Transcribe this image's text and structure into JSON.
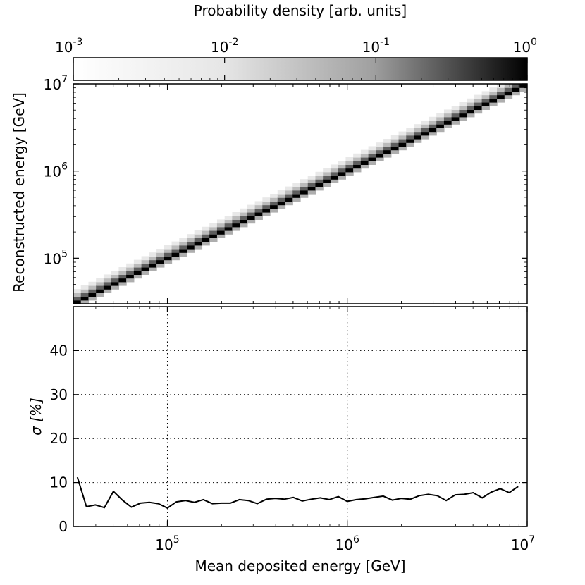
{
  "chart_data": [
    {
      "type": "heatmap",
      "title": "",
      "colorbar": {
        "label": "Probability density [arb. units]",
        "scale": "log",
        "range": [
          0.001,
          1
        ],
        "ticks": [
          {
            "base": "10",
            "exp": "-3"
          },
          {
            "base": "10",
            "exp": "-2"
          },
          {
            "base": "10",
            "exp": "-1"
          },
          {
            "base": "10",
            "exp": "0"
          }
        ],
        "colormap": "gray_r"
      },
      "xscale": "log",
      "xlim": [
        30000,
        10000000
      ],
      "yscale": "log",
      "ylim": [
        30000,
        10000000
      ],
      "ylabel": "Reconstructed energy [GeV]",
      "yticks": [
        {
          "base": "10",
          "exp": "5",
          "value": 100000
        },
        {
          "base": "10",
          "exp": "6",
          "value": 1000000
        },
        {
          "base": "10",
          "exp": "7",
          "value": 10000000
        }
      ],
      "description_values": {
        "diagonal_peak_density": 1.0,
        "relation": "reconstructed energy ≈ deposited energy"
      }
    },
    {
      "type": "line",
      "xlabel": "Mean deposited energy [GeV]",
      "ylabel": "σ [%]",
      "xscale": "log",
      "xlim": [
        30000,
        10000000
      ],
      "ylim": [
        0,
        50
      ],
      "grid": true,
      "xticks": [
        {
          "base": "10",
          "exp": "5",
          "value": 100000
        },
        {
          "base": "10",
          "exp": "6",
          "value": 1000000
        },
        {
          "base": "10",
          "exp": "7",
          "value": 10000000
        }
      ],
      "yticks": [
        "0",
        "10",
        "20",
        "30",
        "40"
      ],
      "series": [
        {
          "name": "sigma",
          "x": [
            31623,
            35481,
            39811,
            44668,
            50119,
            56234,
            63096,
            70795,
            79433,
            89125,
            100000,
            112202,
            125893,
            141254,
            158489,
            177828,
            199526,
            223872,
            251189,
            281838,
            316228,
            354813,
            398107,
            446684,
            501187,
            562341,
            630957,
            707946,
            794328,
            891251,
            1000000,
            1122018,
            1258925,
            1412538,
            1584893,
            1778279,
            1995262,
            2238721,
            2511886,
            2818383,
            3162278,
            3548134,
            3981072,
            4466836,
            5011872,
            5623413,
            6309573,
            7079458,
            7943282,
            8912509
          ],
          "values": [
            11.2,
            4.5,
            4.9,
            4.3,
            8.0,
            6.0,
            4.4,
            5.3,
            5.5,
            5.2,
            4.2,
            5.6,
            5.9,
            5.5,
            6.1,
            5.2,
            5.3,
            5.3,
            6.1,
            5.9,
            5.2,
            6.2,
            6.4,
            6.2,
            6.6,
            5.8,
            6.2,
            6.5,
            6.1,
            6.8,
            5.7,
            6.1,
            6.3,
            6.6,
            6.9,
            6.0,
            6.4,
            6.2,
            7.0,
            7.3,
            7.0,
            5.9,
            7.2,
            7.3,
            7.7,
            6.5,
            7.8,
            8.6,
            7.7,
            9.1
          ]
        }
      ]
    }
  ]
}
